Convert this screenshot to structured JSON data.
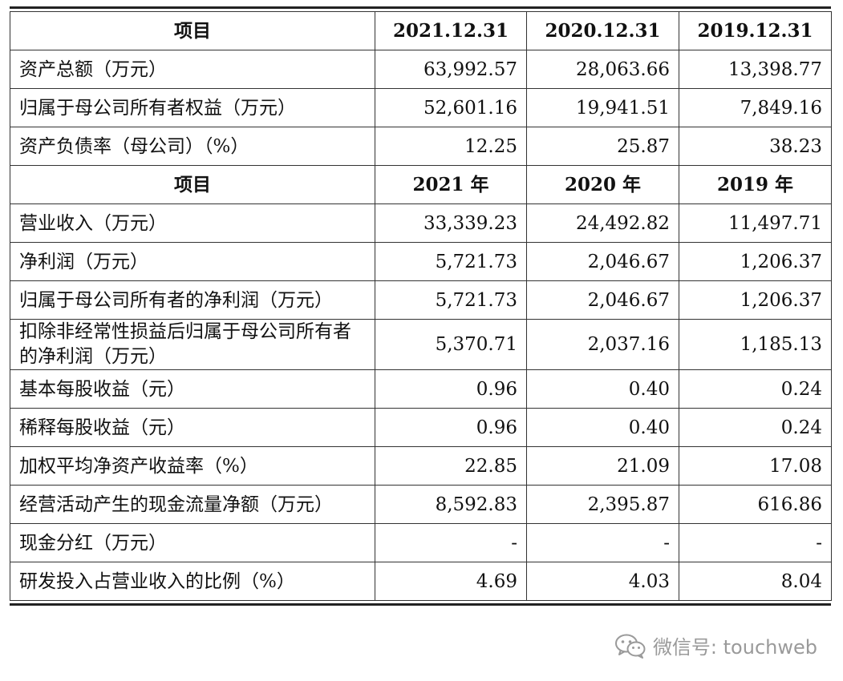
{
  "section1": {
    "header": [
      "项目",
      "2021.12.31",
      "2020.12.31",
      "2019.12.31"
    ],
    "rows": [
      {
        "label": "资产总额（万元）",
        "values": [
          "63,992.57",
          "28,063.66",
          "13,398.77"
        ]
      },
      {
        "label": "归属于母公司所有者权益（万元）",
        "values": [
          "52,601.16",
          "19,941.51",
          "7,849.16"
        ]
      },
      {
        "label": "资产负债率（母公司）（%）",
        "values": [
          "12.25",
          "25.87",
          "38.23"
        ]
      }
    ]
  },
  "section2": {
    "header": [
      "项目",
      "2021 年",
      "2020 年",
      "2019 年"
    ],
    "rows": [
      {
        "label": "营业收入（万元）",
        "values": [
          "33,339.23",
          "24,492.82",
          "11,497.71"
        ]
      },
      {
        "label": "净利润（万元）",
        "values": [
          "5,721.73",
          "2,046.67",
          "1,206.37"
        ]
      },
      {
        "label": "归属于母公司所有者的净利润（万元）",
        "values": [
          "5,721.73",
          "2,046.67",
          "1,206.37"
        ]
      },
      {
        "label": "扣除非经常性损益后归属于母公司所有者的净利润（万元）",
        "values": [
          "5,370.71",
          "2,037.16",
          "1,185.13"
        ]
      },
      {
        "label": "基本每股收益（元）",
        "values": [
          "0.96",
          "0.40",
          "0.24"
        ]
      },
      {
        "label": "稀释每股收益（元）",
        "values": [
          "0.96",
          "0.40",
          "0.24"
        ]
      },
      {
        "label": "加权平均净资产收益率（%）",
        "values": [
          "22.85",
          "21.09",
          "17.08"
        ]
      },
      {
        "label": "经营活动产生的现金流量净额（万元）",
        "values": [
          "8,592.83",
          "2,395.87",
          "616.86"
        ]
      },
      {
        "label": "现金分红（万元）",
        "values": [
          "-",
          "-",
          "-"
        ]
      },
      {
        "label": "研发投入占营业收入的比例（%）",
        "values": [
          "4.69",
          "4.03",
          "8.04"
        ]
      }
    ]
  },
  "watermark": {
    "text": "微信号: touchweb",
    "icon": "wechat-icon",
    "color": "#9a9a9a"
  }
}
